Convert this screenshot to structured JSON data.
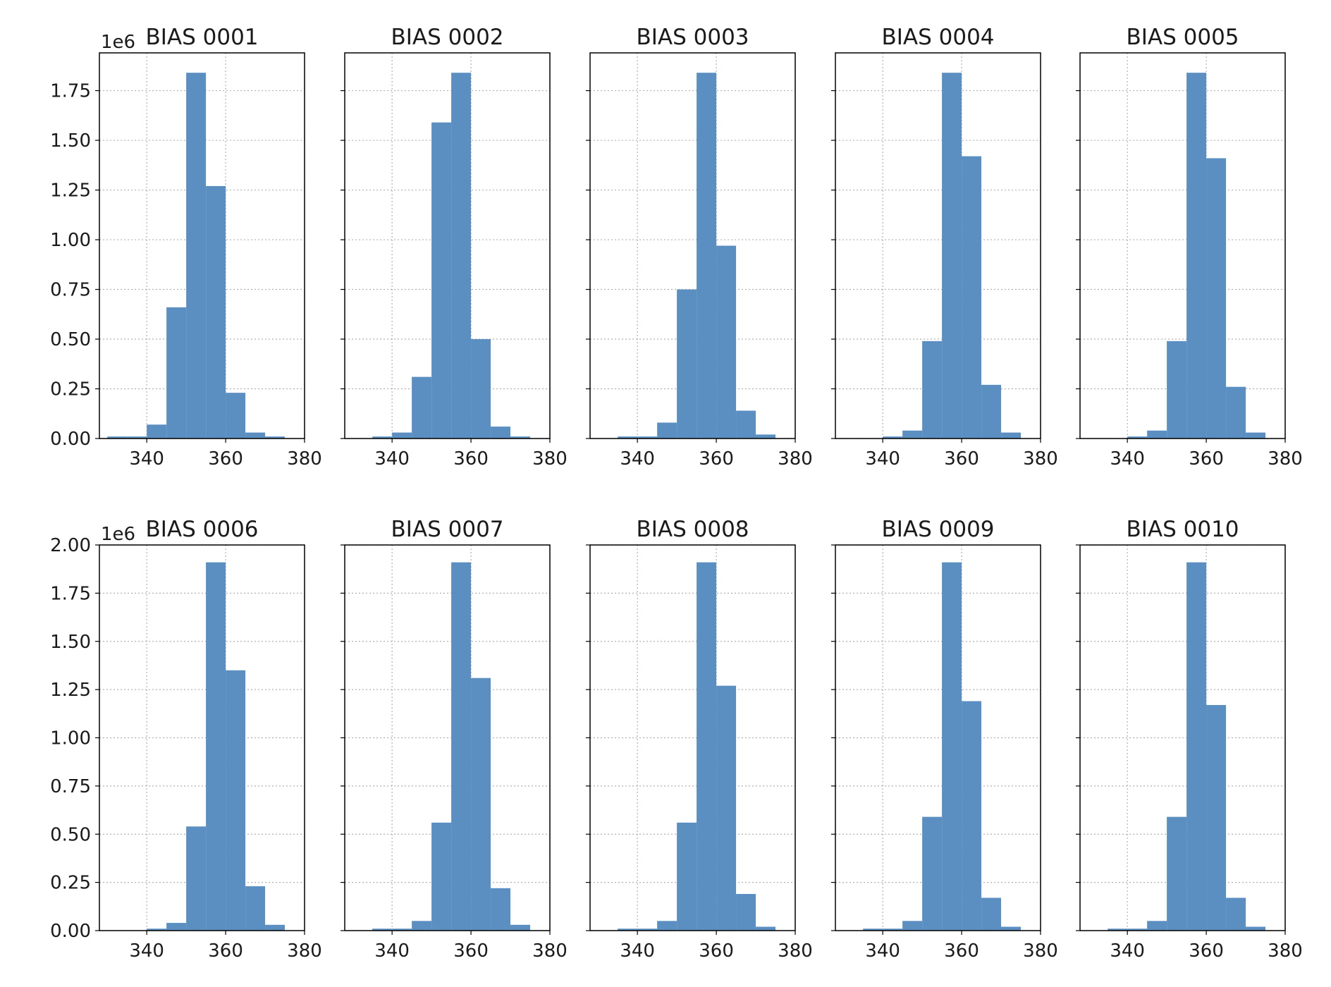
{
  "figure": {
    "rows": [
      {
        "axes_offset_text": "1e6",
        "ytick_labels": [
          "0.00",
          "0.25",
          "0.50",
          "0.75",
          "1.00",
          "1.25",
          "1.50",
          "1.75"
        ],
        "ylim": [
          0,
          1.94
        ]
      },
      {
        "axes_offset_text": "1e6",
        "ytick_labels": [
          "0.00",
          "0.25",
          "0.50",
          "0.75",
          "1.00",
          "1.25",
          "1.50",
          "1.75",
          "2.00"
        ],
        "ylim": [
          0,
          2.0
        ]
      }
    ],
    "xtick_labels": [
      "340",
      "360",
      "380"
    ]
  },
  "chart_data": [
    {
      "type": "bar",
      "title": "BIAS 0001",
      "bin_edges": [
        330,
        335,
        340,
        345,
        350,
        355,
        360,
        365,
        370,
        375
      ],
      "values": [
        0.01,
        0.01,
        0.07,
        0.66,
        1.84,
        1.27,
        0.23,
        0.03,
        0.01
      ],
      "xlim": [
        328,
        380
      ],
      "ylim": [
        0,
        1.94
      ],
      "color": "#5b8fc2",
      "grid": true,
      "y_scale_label": "1e6"
    },
    {
      "type": "bar",
      "title": "BIAS 0002",
      "bin_edges": [
        335,
        340,
        345,
        350,
        355,
        360,
        365,
        370,
        375
      ],
      "values": [
        0.01,
        0.03,
        0.31,
        1.59,
        1.84,
        0.5,
        0.06,
        0.01
      ],
      "xlim": [
        328,
        380
      ],
      "ylim": [
        0,
        1.94
      ],
      "color": "#5b8fc2",
      "grid": true
    },
    {
      "type": "bar",
      "title": "BIAS 0003",
      "bin_edges": [
        335,
        340,
        345,
        350,
        355,
        360,
        365,
        370,
        375
      ],
      "values": [
        0.01,
        0.01,
        0.08,
        0.75,
        1.84,
        0.97,
        0.14,
        0.02
      ],
      "xlim": [
        328,
        380
      ],
      "ylim": [
        0,
        1.94
      ],
      "color": "#5b8fc2",
      "grid": true
    },
    {
      "type": "bar",
      "title": "BIAS 0004",
      "bin_edges": [
        340,
        345,
        350,
        355,
        360,
        365,
        370,
        375
      ],
      "values": [
        0.01,
        0.04,
        0.49,
        1.84,
        1.42,
        0.27,
        0.03
      ],
      "xlim": [
        328,
        380
      ],
      "ylim": [
        0,
        1.94
      ],
      "color": "#5b8fc2",
      "grid": true
    },
    {
      "type": "bar",
      "title": "BIAS 0005",
      "bin_edges": [
        340,
        345,
        350,
        355,
        360,
        365,
        370,
        375
      ],
      "values": [
        0.01,
        0.04,
        0.49,
        1.84,
        1.41,
        0.26,
        0.03
      ],
      "xlim": [
        328,
        380
      ],
      "ylim": [
        0,
        1.94
      ],
      "color": "#5b8fc2",
      "grid": true
    },
    {
      "type": "bar",
      "title": "BIAS 0006",
      "bin_edges": [
        340,
        345,
        350,
        355,
        360,
        365,
        370,
        375
      ],
      "values": [
        0.01,
        0.04,
        0.54,
        1.91,
        1.35,
        0.23,
        0.03
      ],
      "xlim": [
        328,
        380
      ],
      "ylim": [
        0,
        2.0
      ],
      "color": "#5b8fc2",
      "grid": true,
      "y_scale_label": "1e6"
    },
    {
      "type": "bar",
      "title": "BIAS 0007",
      "bin_edges": [
        335,
        340,
        345,
        350,
        355,
        360,
        365,
        370,
        375
      ],
      "values": [
        0.01,
        0.01,
        0.05,
        0.56,
        1.91,
        1.31,
        0.22,
        0.03
      ],
      "xlim": [
        328,
        380
      ],
      "ylim": [
        0,
        2.0
      ],
      "color": "#5b8fc2",
      "grid": true
    },
    {
      "type": "bar",
      "title": "BIAS 0008",
      "bin_edges": [
        335,
        340,
        345,
        350,
        355,
        360,
        365,
        370,
        375
      ],
      "values": [
        0.01,
        0.01,
        0.05,
        0.56,
        1.91,
        1.27,
        0.19,
        0.02
      ],
      "xlim": [
        328,
        380
      ],
      "ylim": [
        0,
        2.0
      ],
      "color": "#5b8fc2",
      "grid": true
    },
    {
      "type": "bar",
      "title": "BIAS 0009",
      "bin_edges": [
        335,
        340,
        345,
        350,
        355,
        360,
        365,
        370,
        375
      ],
      "values": [
        0.01,
        0.01,
        0.05,
        0.59,
        1.91,
        1.19,
        0.17,
        0.02
      ],
      "xlim": [
        328,
        380
      ],
      "ylim": [
        0,
        2.0
      ],
      "color": "#5b8fc2",
      "grid": true
    },
    {
      "type": "bar",
      "title": "BIAS 0010",
      "bin_edges": [
        335,
        340,
        345,
        350,
        355,
        360,
        365,
        370,
        375
      ],
      "values": [
        0.01,
        0.01,
        0.05,
        0.59,
        1.91,
        1.17,
        0.17,
        0.02
      ],
      "xlim": [
        328,
        380
      ],
      "ylim": [
        0,
        2.0
      ],
      "color": "#5b8fc2",
      "grid": true
    }
  ]
}
